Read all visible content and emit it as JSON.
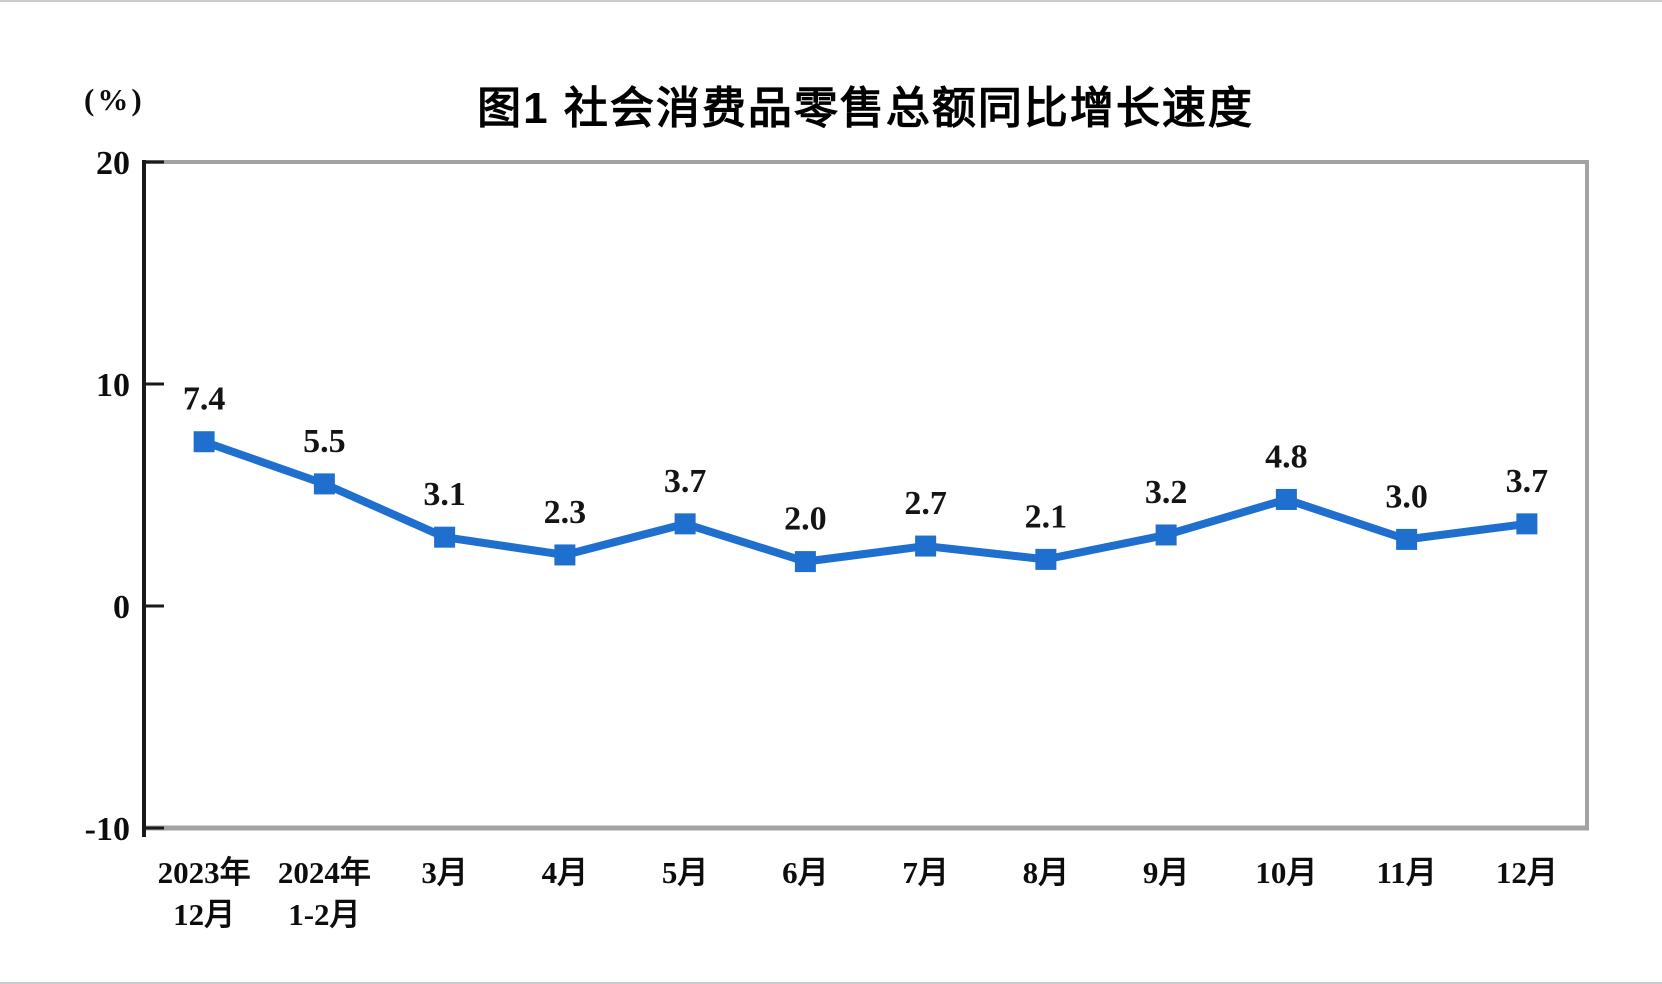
{
  "figure": {
    "title": "图1  社会消费品零售总额同比增长速度",
    "unit_label": "(%)"
  },
  "chart_data": {
    "type": "line",
    "title": "图1  社会消费品零售总额同比增长速度",
    "ylabel": "(%)",
    "xlabel": "",
    "ylim": [
      -10,
      20
    ],
    "yticks": [
      20,
      10,
      0,
      -10
    ],
    "grid": false,
    "legend_position": "none",
    "categories": [
      {
        "label": "2023年",
        "sublabel": "12月"
      },
      {
        "label": "2024年",
        "sublabel": "1-2月"
      },
      {
        "label": "3月",
        "sublabel": ""
      },
      {
        "label": "4月",
        "sublabel": ""
      },
      {
        "label": "5月",
        "sublabel": ""
      },
      {
        "label": "6月",
        "sublabel": ""
      },
      {
        "label": "7月",
        "sublabel": ""
      },
      {
        "label": "8月",
        "sublabel": ""
      },
      {
        "label": "9月",
        "sublabel": ""
      },
      {
        "label": "10月",
        "sublabel": ""
      },
      {
        "label": "11月",
        "sublabel": ""
      },
      {
        "label": "12月",
        "sublabel": ""
      }
    ],
    "values": [
      7.4,
      5.5,
      3.1,
      2.3,
      3.7,
      2.0,
      2.7,
      2.1,
      3.2,
      4.8,
      3.0,
      3.7
    ],
    "data_labels": [
      "7.4",
      "5.5",
      "3.1",
      "2.3",
      "3.7",
      "2.0",
      "2.7",
      "2.1",
      "3.2",
      "4.8",
      "3.0",
      "3.7"
    ],
    "marker": "square",
    "colors": {
      "line": "#1e6fce",
      "marker": "#1e6fce",
      "axis": "#1a1a1a",
      "plot_border": "#a3a3a3",
      "text": "#0d0d0d"
    }
  }
}
